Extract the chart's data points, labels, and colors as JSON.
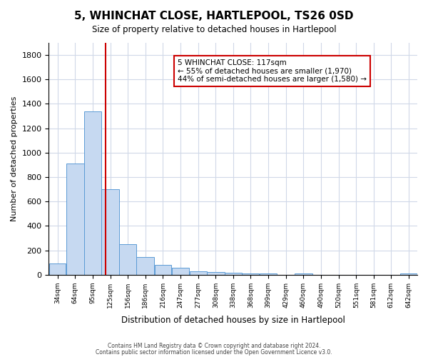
{
  "title": "5, WHINCHAT CLOSE, HARTLEPOOL, TS26 0SD",
  "subtitle": "Size of property relative to detached houses in Hartlepool",
  "xlabel": "Distribution of detached houses by size in Hartlepool",
  "ylabel": "Number of detached properties",
  "bar_values": [
    90,
    910,
    1340,
    700,
    250,
    145,
    80,
    55,
    30,
    20,
    15,
    10,
    10,
    0,
    10,
    0,
    0,
    0,
    0,
    0,
    10
  ],
  "bar_labels": [
    "34sqm",
    "64sqm",
    "95sqm",
    "125sqm",
    "156sqm",
    "186sqm",
    "216sqm",
    "247sqm",
    "277sqm",
    "308sqm",
    "338sqm",
    "368sqm",
    "399sqm",
    "429sqm",
    "460sqm",
    "490sqm",
    "520sqm",
    "551sqm",
    "581sqm",
    "612sqm",
    "642sqm"
  ],
  "bin_edges": [
    19,
    49,
    80,
    110,
    141,
    171,
    202,
    232,
    263,
    293,
    324,
    354,
    384,
    415,
    445,
    476,
    506,
    537,
    567,
    597,
    628,
    658
  ],
  "bar_color": "#c6d9f1",
  "bar_edge_color": "#5b9bd5",
  "red_line_x": 117,
  "ylim": [
    0,
    1900
  ],
  "yticks": [
    0,
    200,
    400,
    600,
    800,
    1000,
    1200,
    1400,
    1600,
    1800
  ],
  "annotation_title": "5 WHINCHAT CLOSE: 117sqm",
  "annotation_line1": "← 55% of detached houses are smaller (1,970)",
  "annotation_line2": "44% of semi-detached houses are larger (1,580) →",
  "annotation_box_color": "#ffffff",
  "annotation_box_edge": "#cc0000",
  "footer_line1": "Contains HM Land Registry data © Crown copyright and database right 2024.",
  "footer_line2": "Contains public sector information licensed under the Open Government Licence v3.0.",
  "background_color": "#ffffff",
  "grid_color": "#d0d8e8"
}
